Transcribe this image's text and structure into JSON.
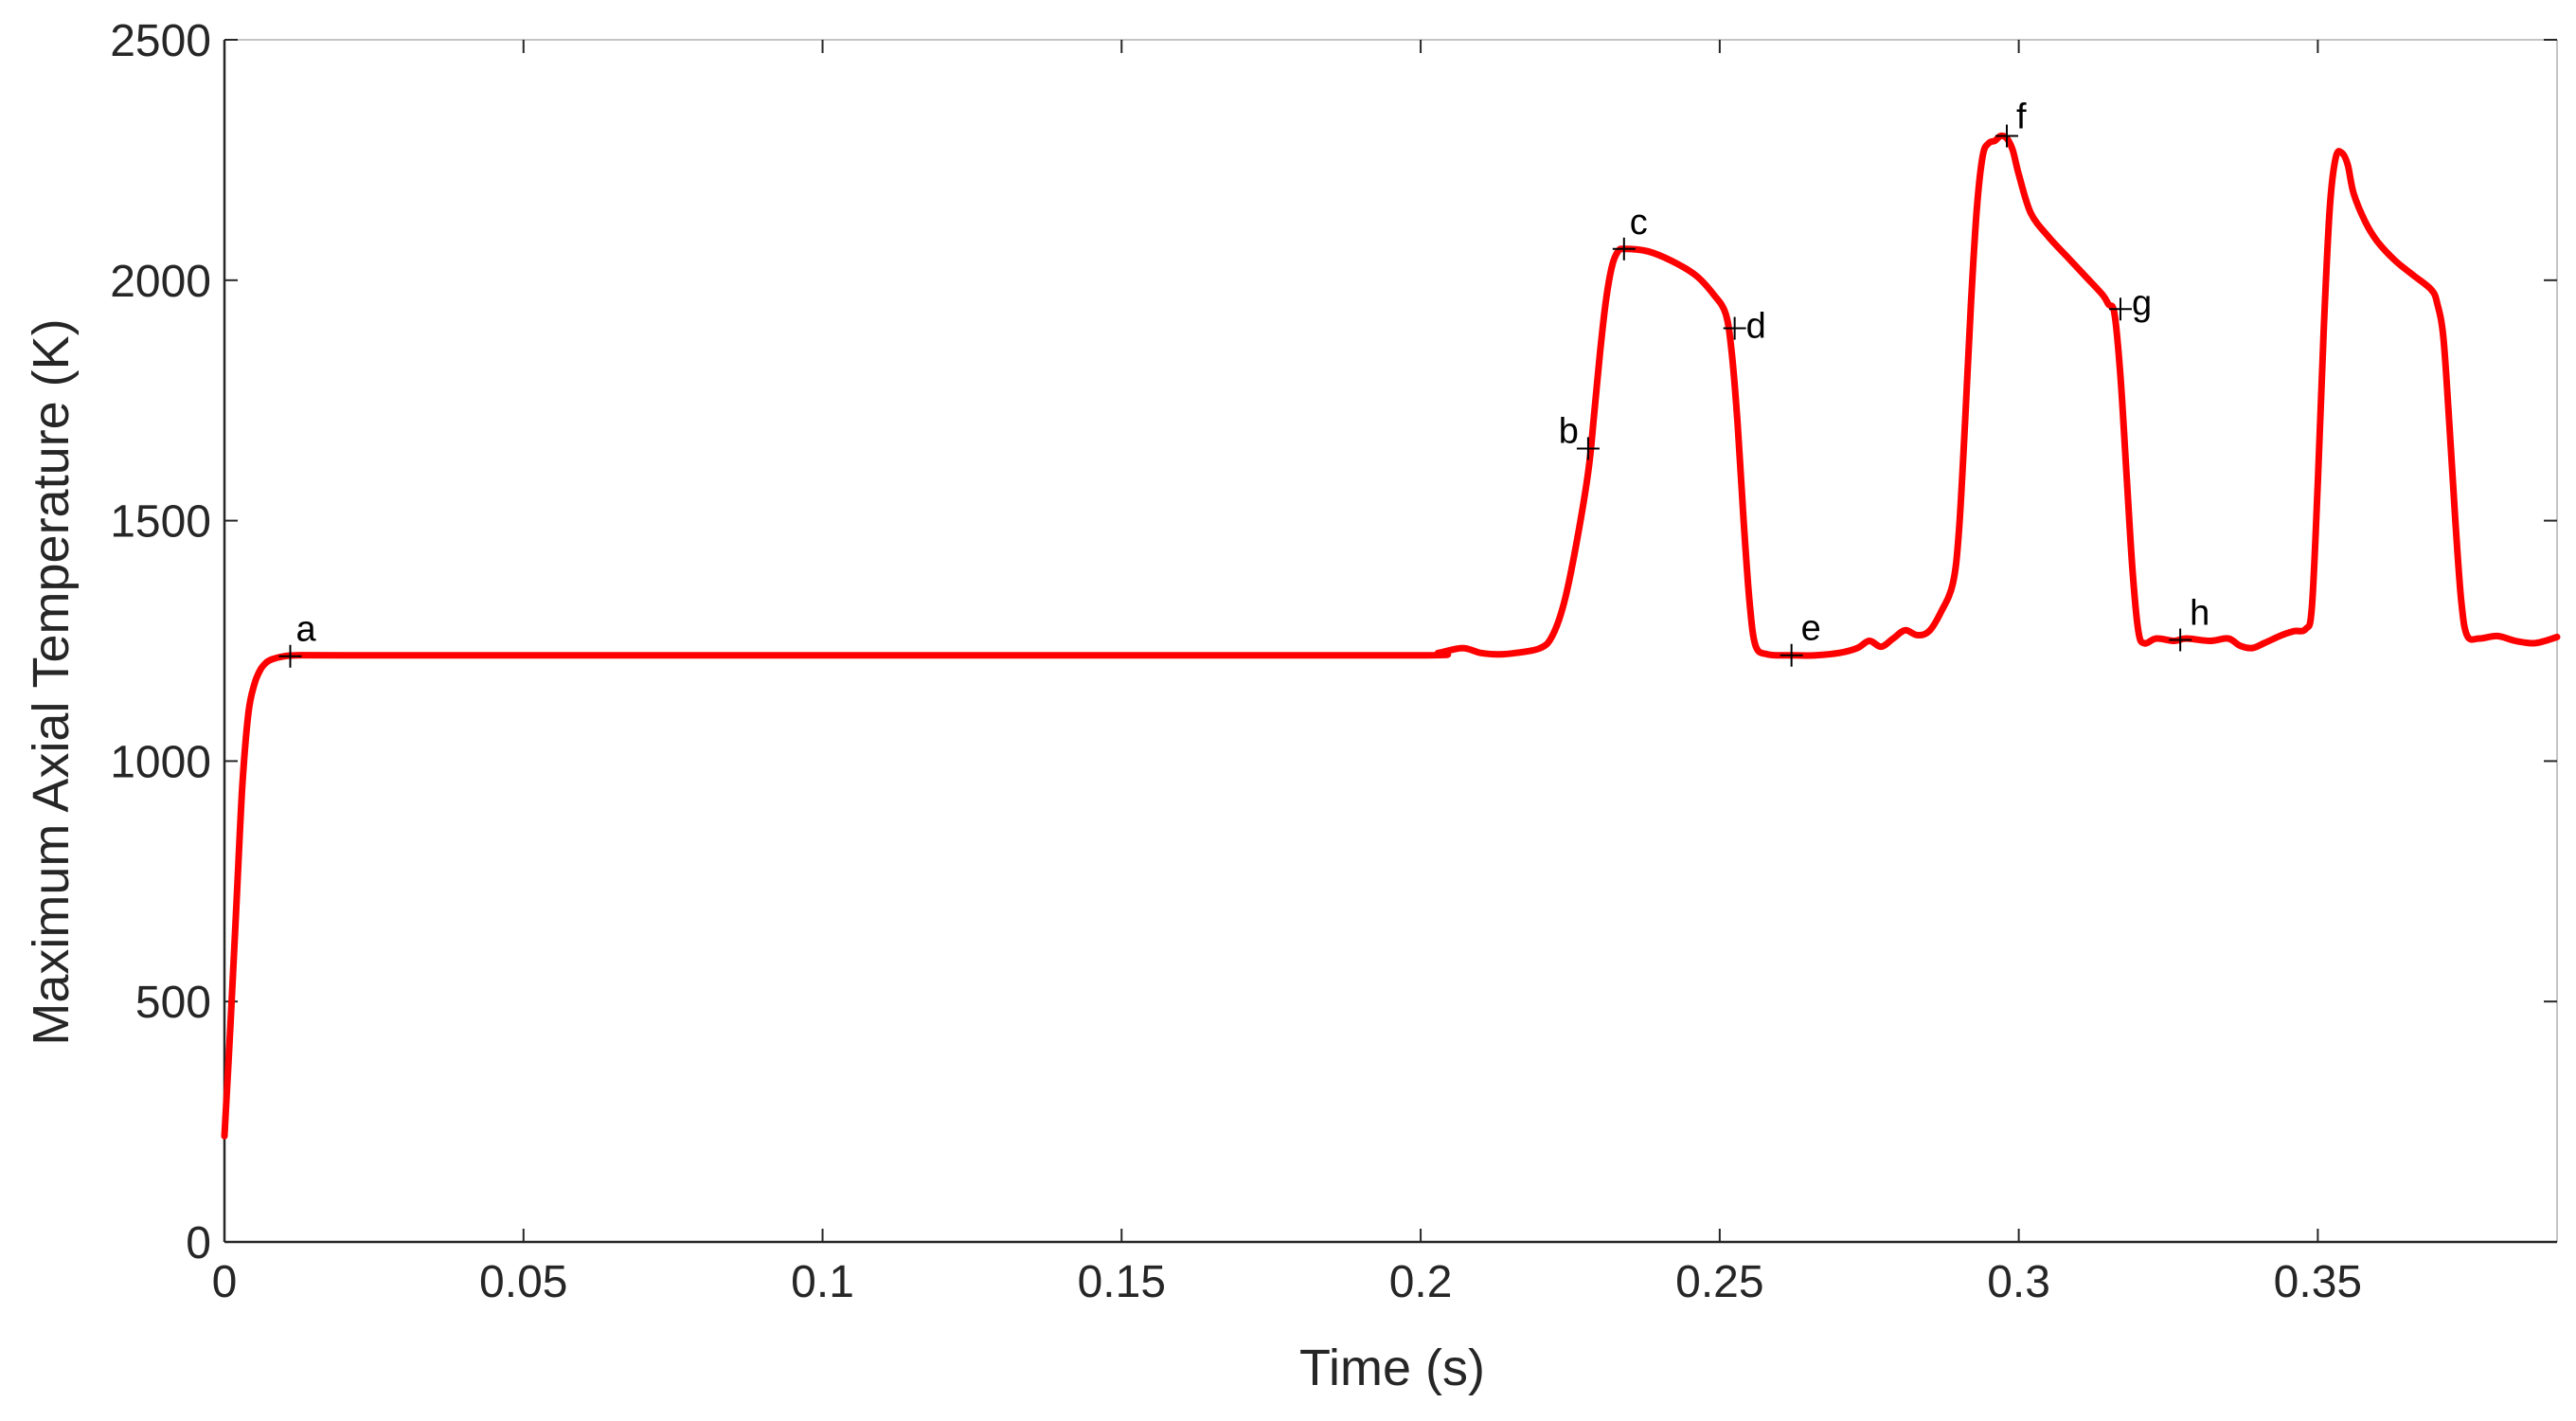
{
  "chart_data": {
    "type": "line",
    "title": "",
    "xlabel": "Time (s)",
    "ylabel": "Maximum Axial Temperature (K)",
    "xlim": [
      0,
      0.39
    ],
    "ylim": [
      0,
      2500
    ],
    "x_ticks": [
      0,
      0.05,
      0.1,
      0.15,
      0.2,
      0.25,
      0.3,
      0.35
    ],
    "x_tick_labels": [
      "0",
      "0.05",
      "0.1",
      "0.15",
      "0.2",
      "0.25",
      "0.3",
      "0.35"
    ],
    "y_ticks": [
      0,
      500,
      1000,
      1500,
      2000,
      2500
    ],
    "y_tick_labels": [
      "0",
      "500",
      "1000",
      "1500",
      "2000",
      "2500"
    ],
    "grid": false,
    "series": [
      {
        "color": "#ff0000",
        "x": [
          0,
          0.001,
          0.002,
          0.003,
          0.004,
          0.005,
          0.006,
          0.007,
          0.008,
          0.01,
          0.012,
          0.02,
          0.05,
          0.1,
          0.15,
          0.2,
          0.203,
          0.207,
          0.21,
          0.213,
          0.216,
          0.22,
          0.222,
          0.224,
          0.226,
          0.228,
          0.229,
          0.23,
          0.231,
          0.232,
          0.233,
          0.234,
          0.238,
          0.242,
          0.246,
          0.249,
          0.251,
          0.252,
          0.253,
          0.254,
          0.255,
          0.256,
          0.258,
          0.262,
          0.266,
          0.27,
          0.273,
          0.275,
          0.277,
          0.279,
          0.281,
          0.283,
          0.285,
          0.287,
          0.289,
          0.29,
          0.291,
          0.292,
          0.293,
          0.294,
          0.295,
          0.296,
          0.297,
          0.298,
          0.299,
          0.3,
          0.302,
          0.305,
          0.308,
          0.311,
          0.314,
          0.315,
          0.316,
          0.317,
          0.318,
          0.319,
          0.32,
          0.321,
          0.323,
          0.326,
          0.328,
          0.332,
          0.335,
          0.337,
          0.339,
          0.341,
          0.344,
          0.346,
          0.348,
          0.349,
          0.35,
          0.351,
          0.352,
          0.353,
          0.354,
          0.355,
          0.356,
          0.358,
          0.36,
          0.363,
          0.366,
          0.369,
          0.37,
          0.371,
          0.372,
          0.373,
          0.374,
          0.375,
          0.377,
          0.38,
          0.383,
          0.386,
          0.388,
          0.39
        ],
        "y": [
          220,
          450,
          700,
          950,
          1100,
          1160,
          1190,
          1205,
          1212,
          1218,
          1220,
          1220,
          1220,
          1220,
          1220,
          1220,
          1225,
          1235,
          1225,
          1222,
          1225,
          1235,
          1260,
          1330,
          1450,
          1600,
          1720,
          1850,
          1960,
          2030,
          2060,
          2065,
          2060,
          2040,
          2010,
          1970,
          1930,
          1850,
          1700,
          1500,
          1330,
          1240,
          1222,
          1220,
          1220,
          1225,
          1235,
          1250,
          1238,
          1255,
          1272,
          1262,
          1270,
          1310,
          1370,
          1480,
          1700,
          1950,
          2150,
          2260,
          2285,
          2290,
          2300,
          2295,
          2270,
          2220,
          2140,
          2090,
          2050,
          2010,
          1970,
          1950,
          1930,
          1800,
          1600,
          1400,
          1270,
          1245,
          1255,
          1250,
          1255,
          1250,
          1255,
          1240,
          1235,
          1245,
          1262,
          1270,
          1275,
          1320,
          1580,
          1900,
          2150,
          2255,
          2265,
          2240,
          2180,
          2120,
          2080,
          2040,
          2010,
          1980,
          1950,
          1880,
          1700,
          1500,
          1330,
          1260,
          1255,
          1260,
          1250,
          1245,
          1250,
          1258
        ]
      }
    ],
    "markers": [
      {
        "label": "a",
        "x": 0.011,
        "y": 1218
      },
      {
        "label": "b",
        "x": 0.228,
        "y": 1650
      },
      {
        "label": "c",
        "x": 0.234,
        "y": 2065
      },
      {
        "label": "d",
        "x": 0.2525,
        "y": 1900
      },
      {
        "label": "e",
        "x": 0.262,
        "y": 1220
      },
      {
        "label": "f",
        "x": 0.298,
        "y": 2300
      },
      {
        "label": "g",
        "x": 0.317,
        "y": 1940
      },
      {
        "label": "h",
        "x": 0.327,
        "y": 1252
      }
    ]
  }
}
